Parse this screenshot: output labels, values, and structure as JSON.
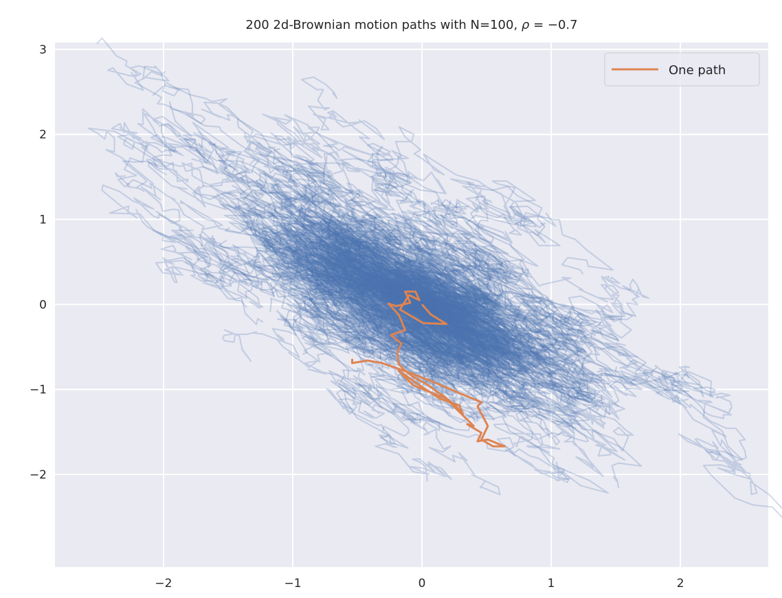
{
  "chart_data": {
    "type": "line",
    "title_prefix": "200 2d-Brownian motion paths with N=100, ",
    "title_rho_symbol": "ρ",
    "title_rho_value": " = −0.7",
    "xlabel": "",
    "ylabel": "",
    "xlim": [
      -2.84,
      2.68
    ],
    "ylim": [
      -3.09,
      3.08
    ],
    "xticks": [
      -2,
      -1,
      0,
      1,
      2
    ],
    "xtick_labels": [
      "−2",
      "−1",
      "0",
      "1",
      "2"
    ],
    "yticks": [
      -2,
      -1,
      0,
      1,
      2,
      3
    ],
    "ytick_labels": [
      "−2",
      "−1",
      "0",
      "1",
      "2",
      "3"
    ],
    "grid": true,
    "legend": {
      "position": "top-right",
      "entries": [
        "One path"
      ]
    },
    "background_paths": {
      "count": 200,
      "steps": 100,
      "rho": -0.7,
      "step_sd": 0.1,
      "color": "#4c72b0",
      "alpha": 0.25
    },
    "series": [
      {
        "name": "One path",
        "color": "#dd8452",
        "points": [
          [
            0,
            0
          ],
          [
            0.07,
            -0.12
          ],
          [
            0.19,
            -0.23
          ],
          [
            0.01,
            -0.22
          ],
          [
            -0.17,
            -0.06
          ],
          [
            -0.1,
            0.11
          ],
          [
            -0.02,
            0.05
          ],
          [
            -0.05,
            0.15
          ],
          [
            -0.13,
            0.15
          ],
          [
            -0.09,
            0.02
          ],
          [
            -0.2,
            -0.02
          ],
          [
            -0.26,
            0.01
          ],
          [
            -0.18,
            -0.12
          ],
          [
            -0.13,
            -0.3
          ],
          [
            -0.24,
            -0.36
          ],
          [
            -0.16,
            -0.46
          ],
          [
            -0.19,
            -0.56
          ],
          [
            -0.18,
            -0.7
          ],
          [
            -0.13,
            -0.78
          ],
          [
            -0.07,
            -0.85
          ],
          [
            -0.01,
            -0.9
          ],
          [
            0.05,
            -0.95
          ],
          [
            0.12,
            -1.03
          ],
          [
            0.16,
            -1.07
          ],
          [
            0.26,
            -1.19
          ],
          [
            0.32,
            -1.31
          ],
          [
            0.29,
            -1.19
          ],
          [
            0.14,
            -1.11
          ],
          [
            -0.02,
            -0.95
          ],
          [
            -0.18,
            -0.78
          ],
          [
            -0.07,
            -0.95
          ],
          [
            0.06,
            -1.03
          ],
          [
            0.19,
            -1.11
          ],
          [
            0.24,
            -1.19
          ],
          [
            0.4,
            -1.43
          ],
          [
            0.35,
            -1.41
          ],
          [
            0.46,
            -1.51
          ],
          [
            0.43,
            -1.61
          ],
          [
            0.51,
            -1.59
          ],
          [
            0.64,
            -1.67
          ],
          [
            0.55,
            -1.67
          ],
          [
            0.46,
            -1.59
          ],
          [
            0.51,
            -1.43
          ],
          [
            0.43,
            -1.2
          ],
          [
            0.46,
            -1.15
          ],
          [
            0.3,
            -1.05
          ],
          [
            0.1,
            -0.92
          ],
          [
            -0.1,
            -0.8
          ],
          [
            -0.31,
            -0.69
          ],
          [
            -0.42,
            -0.66
          ],
          [
            -0.54,
            -0.69
          ],
          [
            -0.54,
            -0.64
          ]
        ]
      }
    ]
  }
}
